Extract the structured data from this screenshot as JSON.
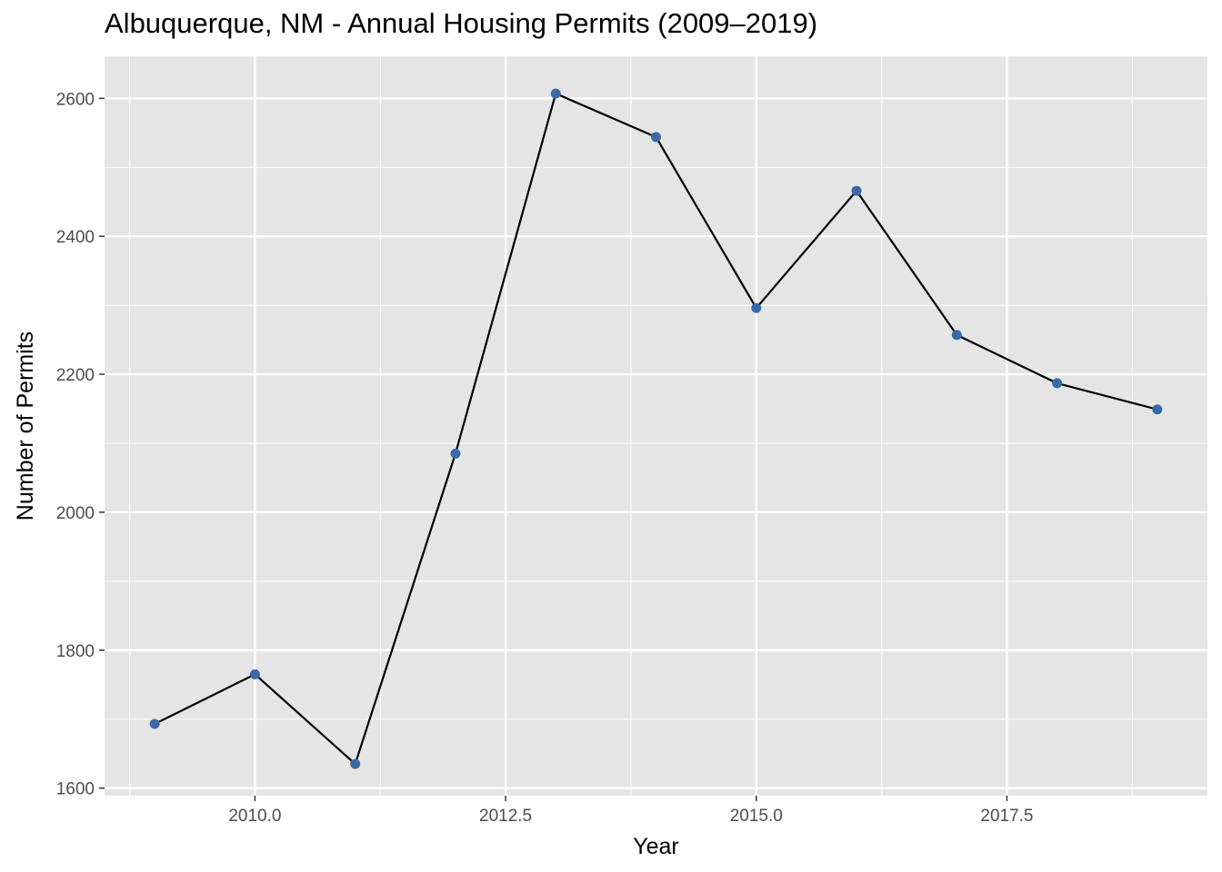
{
  "chart_data": {
    "type": "line",
    "title": "Albuquerque, NM - Annual Housing Permits (2009–2019)",
    "xlabel": "Year",
    "ylabel": "Number of Permits",
    "x": [
      2009,
      2010,
      2011,
      2012,
      2013,
      2014,
      2015,
      2016,
      2017,
      2018,
      2019
    ],
    "series": [
      {
        "values": [
          1693,
          1765,
          1635,
          2085,
          2607,
          2544,
          2296,
          2466,
          2257,
          2187,
          2149
        ]
      }
    ],
    "xlim": [
      2008.5,
      2019.5
    ],
    "ylim": [
      1589,
      2661
    ],
    "x_ticks": [
      2010,
      2012.5,
      2015,
      2017.5
    ],
    "x_tick_labels": [
      "2010.0",
      "2012.5",
      "2015.0",
      "2017.5"
    ],
    "y_ticks": [
      1600,
      1800,
      2000,
      2200,
      2400,
      2600
    ],
    "y_tick_labels": [
      "1600",
      "1800",
      "2000",
      "2200",
      "2400",
      "2600"
    ],
    "grid": true,
    "colors": {
      "panel": "#e5e5e5",
      "grid": "#ffffff",
      "line": "#000000",
      "point": "#3a6aa6"
    }
  }
}
